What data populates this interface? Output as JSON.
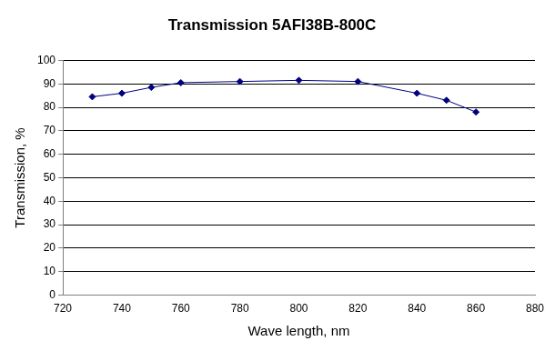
{
  "chart_data": {
    "type": "line",
    "title": "Transmission 5AFI38B-800C",
    "x_label": "Wave length, nm",
    "y_label": "Transmission, %",
    "x": [
      730,
      740,
      750,
      760,
      780,
      800,
      820,
      840,
      850,
      860
    ],
    "values": [
      84.5,
      86,
      88.5,
      90.5,
      91,
      91.5,
      91,
      86,
      83,
      78
    ],
    "color": "#000080",
    "marker": "diamond",
    "line_style": "solid",
    "xlim": [
      720,
      880
    ],
    "xticks": [
      720,
      740,
      760,
      780,
      800,
      820,
      840,
      860,
      880
    ],
    "ylim": [
      0,
      100
    ],
    "yticks": [
      0,
      10,
      20,
      30,
      40,
      50,
      60,
      70,
      80,
      90,
      100
    ],
    "grid": "y"
  }
}
